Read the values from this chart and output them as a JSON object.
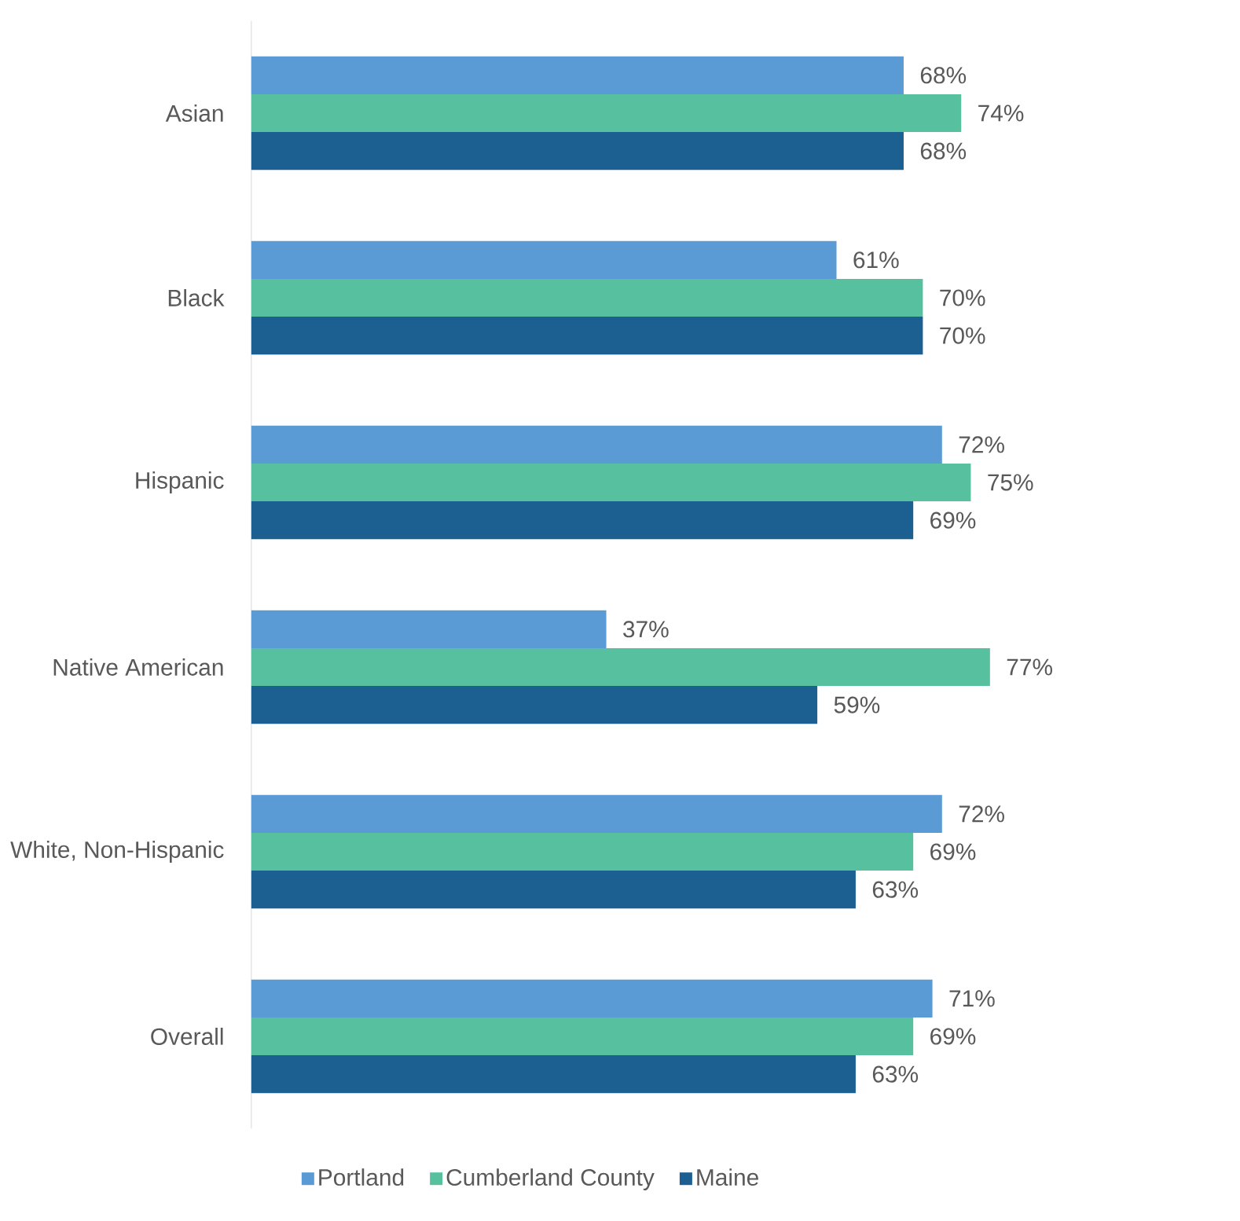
{
  "chart_data": {
    "type": "bar",
    "orientation": "horizontal",
    "categories": [
      "Asian",
      "Black",
      "Hispanic",
      "Native American",
      "White, Non-Hispanic",
      "Overall"
    ],
    "series": [
      {
        "name": "Portland",
        "color": "#5b9bd5",
        "values": [
          68,
          61,
          72,
          37,
          72,
          71
        ],
        "value_labels": [
          "68%",
          "61%",
          "72%",
          "37%",
          "72%",
          "71%"
        ]
      },
      {
        "name": "Cumberland County",
        "color": "#57c19f",
        "values": [
          74,
          70,
          75,
          77,
          69,
          69
        ],
        "value_labels": [
          "74%",
          "70%",
          "75%",
          "77%",
          "69%",
          "69%"
        ]
      },
      {
        "name": "Maine",
        "color": "#1b6090",
        "values": [
          68,
          70,
          69,
          59,
          63,
          63
        ],
        "value_labels": [
          "68%",
          "70%",
          "69%",
          "59%",
          "63%",
          "63%"
        ]
      }
    ],
    "tick_labels": "y",
    "legend": "bottom",
    "grid": false
  }
}
